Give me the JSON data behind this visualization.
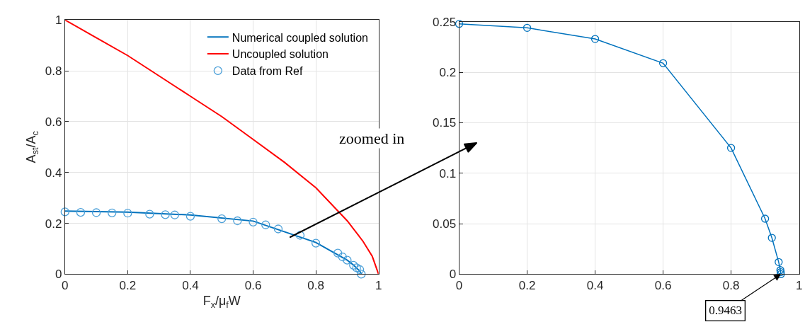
{
  "chart_data": [
    {
      "type": "line",
      "xlabel": "F$_{x}$/μ$_{f}$W",
      "ylabel": "A$_{st}$/A$_{c}$",
      "xlim": [
        0,
        1
      ],
      "ylim": [
        0,
        1
      ],
      "xticks": [
        0,
        0.2,
        0.4,
        0.6,
        0.8,
        1
      ],
      "yticks": [
        0,
        0.2,
        0.4,
        0.6,
        0.8,
        1
      ],
      "grid": true,
      "legend": "top right",
      "annotations": [
        "zoomed in"
      ],
      "series": [
        {
          "name": "Numerical coupled solution",
          "color": "#0072bd",
          "marker": "none",
          "x": [
            0,
            0.2,
            0.4,
            0.6,
            0.8,
            0.9,
            0.92,
            0.94,
            0.9463
          ],
          "values": [
            0.248,
            0.244,
            0.233,
            0.209,
            0.125,
            0.055,
            0.036,
            0.012,
            0
          ]
        },
        {
          "name": "Uncoupled solution",
          "color": "#ff0000",
          "marker": "none",
          "x": [
            0,
            0.1,
            0.2,
            0.3,
            0.4,
            0.5,
            0.6,
            0.7,
            0.8,
            0.9,
            0.95,
            0.98,
            1
          ],
          "values": [
            1,
            0.93,
            0.86,
            0.78,
            0.7,
            0.62,
            0.53,
            0.44,
            0.34,
            0.21,
            0.13,
            0.07,
            0
          ]
        },
        {
          "name": "Data from Ref",
          "type": "scatter",
          "color": "#4a9fd8",
          "marker": "circle",
          "x": [
            0,
            0.05,
            0.1,
            0.15,
            0.2,
            0.27,
            0.32,
            0.35,
            0.4,
            0.5,
            0.55,
            0.6,
            0.64,
            0.68,
            0.75,
            0.8,
            0.87,
            0.885,
            0.9,
            0.92,
            0.93,
            0.94,
            0.945
          ],
          "values": [
            0.245,
            0.243,
            0.242,
            0.241,
            0.24,
            0.236,
            0.234,
            0.233,
            0.228,
            0.218,
            0.21,
            0.205,
            0.194,
            0.178,
            0.153,
            0.122,
            0.083,
            0.068,
            0.055,
            0.035,
            0.025,
            0.018,
            0
          ]
        }
      ]
    },
    {
      "type": "line",
      "xlim": [
        0,
        1
      ],
      "ylim": [
        0,
        0.25
      ],
      "xticks": [
        0,
        0.2,
        0.4,
        0.6,
        0.8,
        1
      ],
      "yticks": [
        0,
        0.05,
        0.1,
        0.15,
        0.2,
        0.25
      ],
      "grid": true,
      "annotations": [
        {
          "text": "0.9463",
          "x": 0.9463,
          "y": 0
        }
      ],
      "series": [
        {
          "color": "#0072bd",
          "marker": "circle",
          "x": [
            0,
            0.2,
            0.4,
            0.6,
            0.8,
            0.9,
            0.92,
            0.94,
            0.945,
            0.946,
            0.9463
          ],
          "values": [
            0.248,
            0.244,
            0.233,
            0.209,
            0.125,
            0.055,
            0.036,
            0.012,
            0.004,
            0.002,
            0
          ]
        }
      ]
    }
  ]
}
